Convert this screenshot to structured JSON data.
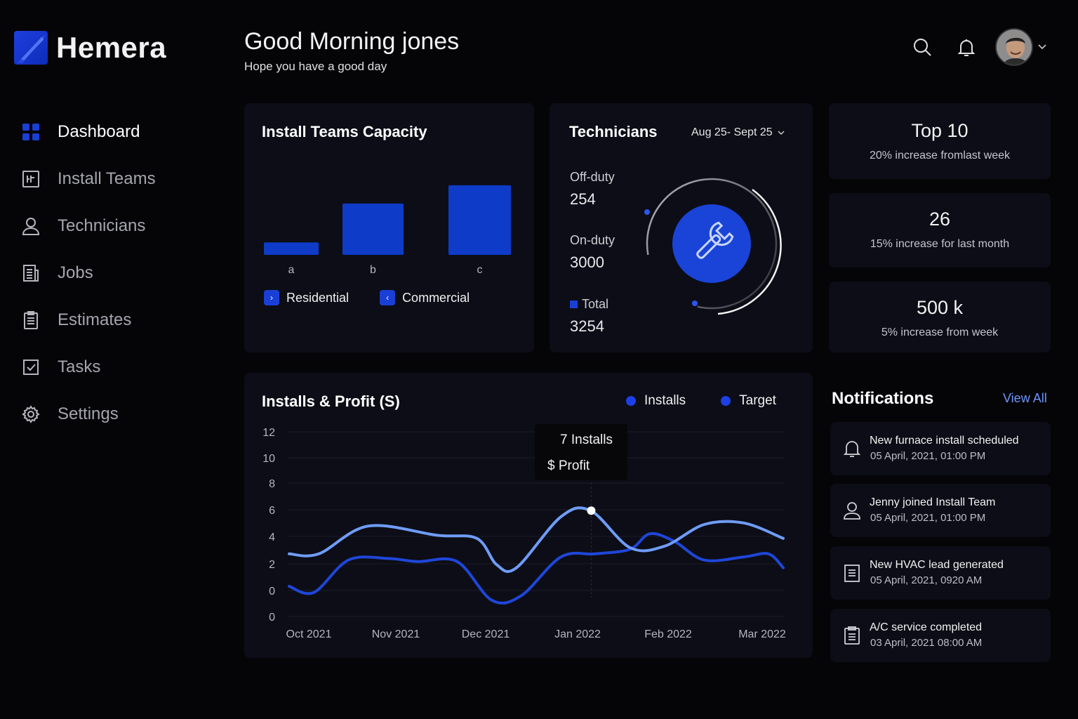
{
  "app": {
    "name": "Hemera"
  },
  "colors": {
    "accent": "#1a3fd6",
    "accent_light": "#6f95ff",
    "card": "#0c0d16",
    "background": "#050508"
  },
  "sidebar": {
    "items": [
      {
        "label": "Dashboard",
        "icon": "grid-icon",
        "active": true
      },
      {
        "label": "Install Teams",
        "icon": "team-board-icon",
        "active": false
      },
      {
        "label": "Technicians",
        "icon": "user-icon",
        "active": false
      },
      {
        "label": "Jobs",
        "icon": "document-icon",
        "active": false
      },
      {
        "label": "Estimates",
        "icon": "clipboard-icon",
        "active": false
      },
      {
        "label": "Tasks",
        "icon": "checkbox-icon",
        "active": false
      },
      {
        "label": "Settings",
        "icon": "gear-icon",
        "active": false
      }
    ]
  },
  "header": {
    "greeting": "Good Morning jones",
    "subtitle": "Hope you have a good day",
    "icons": [
      "search-icon",
      "bell-icon",
      "chevron-down-icon"
    ]
  },
  "capacity": {
    "title": "Install Teams Capacity",
    "legend": [
      {
        "label": "Residential",
        "glyph": "›"
      },
      {
        "label": "Commercial",
        "glyph": "‹"
      }
    ]
  },
  "technicians": {
    "title": "Technicians",
    "date_range": "Aug 25- Sept 25",
    "off_duty_label": "Off-duty",
    "off_duty_value": "254",
    "on_duty_label": "On-duty",
    "on_duty_value": "3000",
    "total_label": "Total",
    "total_value": "3254",
    "icon": "wrench-icon"
  },
  "kpis": [
    {
      "value": "Top 10",
      "sub": "20% increase fromlast week"
    },
    {
      "value": "26",
      "sub": "15% increase for last month"
    },
    {
      "value": "500 k",
      "sub": "5% increase from week"
    }
  ],
  "notifications": {
    "title": "Notifications",
    "view_all": "View All",
    "items": [
      {
        "title": "New furnace install scheduled",
        "time": "05 April, 2021, 01:00 PM",
        "icon": "bell-icon"
      },
      {
        "title": "Jenny joined Install Team",
        "time": "05 April, 2021, 01:00 PM",
        "icon": "user-icon"
      },
      {
        "title": "New HVAC lead generated",
        "time": "05 April, 2021, 0920 AM",
        "icon": "document-icon"
      },
      {
        "title": "A/C service completed",
        "time": "03 April, 2021 08:00 AM",
        "icon": "clipboard-icon"
      }
    ]
  },
  "installs_chart": {
    "title": "Installs & Profit (S)",
    "tooltip_line1": "7 Installs",
    "tooltip_line2": "$ Profit",
    "legend": [
      "Installs",
      "Target"
    ]
  },
  "chart_data": [
    {
      "type": "bar",
      "categories": [
        "a",
        "b",
        "c"
      ],
      "values": [
        1.5,
        6.2,
        8.4
      ],
      "ylim": [
        0,
        10
      ],
      "grid": false,
      "legend": "bottom-left"
    },
    {
      "type": "line",
      "categories": [
        "Oct 2021",
        "Nov 2021",
        "Dec 2021",
        "Jan 2022",
        "Feb 2022",
        "Mar 2022"
      ],
      "yticks": [
        "12",
        "10",
        "8",
        "6",
        "4",
        "2",
        "0",
        "0"
      ],
      "ylim": [
        0,
        12
      ],
      "grid": true,
      "legend": "top-right",
      "series": [
        {
          "name": "Installs",
          "color": "#6f9cf7",
          "points": [
            [
              0,
              4.1
            ],
            [
              0.3,
              4.1
            ],
            [
              0.8,
              5.9
            ],
            [
              1.5,
              5.3
            ],
            [
              1.9,
              5.1
            ],
            [
              2.1,
              3.4
            ],
            [
              2.3,
              3.2
            ],
            [
              2.75,
              6.5
            ],
            [
              3.05,
              6.9
            ],
            [
              3.45,
              4.5
            ],
            [
              3.8,
              4.6
            ],
            [
              4.2,
              6.0
            ],
            [
              4.6,
              6.1
            ],
            [
              5.0,
              5.1
            ]
          ]
        },
        {
          "name": "Target",
          "color": "#1f46d9",
          "points": [
            [
              0,
              2.0
            ],
            [
              0.25,
              1.6
            ],
            [
              0.6,
              3.7
            ],
            [
              1.0,
              3.8
            ],
            [
              1.3,
              3.6
            ],
            [
              1.7,
              3.6
            ],
            [
              2.05,
              1.1
            ],
            [
              2.35,
              1.4
            ],
            [
              2.75,
              3.9
            ],
            [
              3.1,
              4.1
            ],
            [
              3.45,
              4.4
            ],
            [
              3.65,
              5.4
            ],
            [
              3.9,
              4.9
            ],
            [
              4.2,
              3.7
            ],
            [
              4.6,
              3.9
            ],
            [
              4.85,
              4.1
            ],
            [
              5.0,
              3.2
            ]
          ]
        }
      ],
      "highlight": {
        "series": "Installs",
        "x": 3.0,
        "y": 6.9
      }
    }
  ]
}
